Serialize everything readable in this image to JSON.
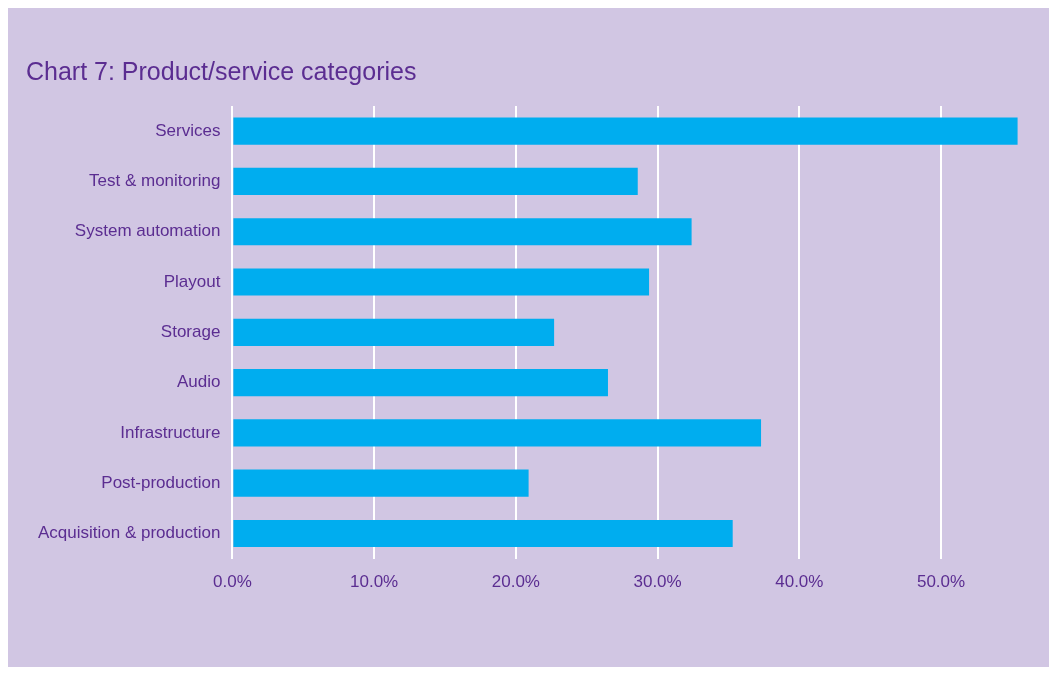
{
  "chart_data": {
    "type": "bar",
    "orientation": "horizontal",
    "title": "Chart 7: Product/service categories",
    "categories": [
      "Services",
      "Test & monitoring",
      "System automation",
      "Playout",
      "Storage",
      "Audio",
      "Infrastructure",
      "Post-production",
      "Acquisition & production"
    ],
    "values": [
      55.4,
      28.6,
      32.4,
      29.4,
      22.7,
      26.5,
      37.3,
      20.9,
      35.3
    ],
    "color": "#00adef",
    "xlim": [
      0,
      55.5
    ],
    "xticks": [
      {
        "value": 0,
        "label": "0.0%"
      },
      {
        "value": 10,
        "label": "10.0%"
      },
      {
        "value": 20,
        "label": "20.0%"
      },
      {
        "value": 30,
        "label": "30.0%"
      },
      {
        "value": 40,
        "label": "40.0%"
      },
      {
        "value": 50,
        "label": "50.0%"
      }
    ],
    "grid": "x",
    "legend": false
  }
}
